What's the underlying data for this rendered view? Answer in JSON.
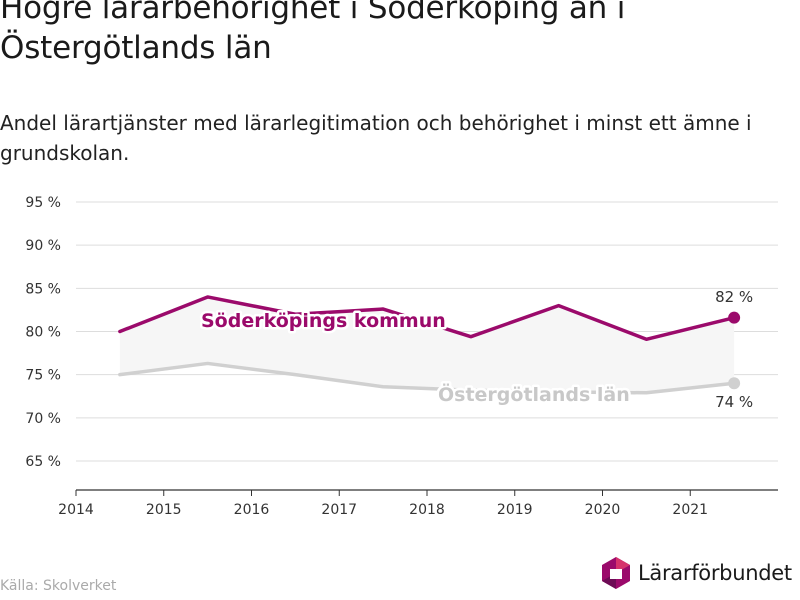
{
  "title": "Högre lärarbehörighet i Söderköping än i Östergötlands län",
  "subtitle": "Andel lärartjänster med lärarlegitimation och behörighet i minst ett ämne i grundskolan.",
  "source": "Källa: Skolverket",
  "logo": {
    "text": "Lärarförbundet",
    "icon": "hexagon-logo-icon"
  },
  "colors": {
    "soderkoping": "#9b0a6b",
    "ostergotland": "#d0d0d0",
    "band": "#f6f6f6",
    "grid": "#dddddd",
    "axis": "#333333"
  },
  "chart_data": {
    "type": "line",
    "x_ticks": [
      "2014",
      "2015",
      "2016",
      "2017",
      "2018",
      "2019",
      "2020",
      "2021"
    ],
    "y_ticks": [
      "95 %",
      "90 %",
      "85 %",
      "80 %",
      "75 %",
      "70 %",
      "65 %"
    ],
    "ylim": [
      62,
      97
    ],
    "xlim": [
      2014,
      2022
    ],
    "grid": true,
    "series": [
      {
        "name": "Söderköpings kommun",
        "x": [
          2014.5,
          2015.5,
          2016.5,
          2017.5,
          2018.5,
          2019.5,
          2020.5,
          2021.5
        ],
        "values": [
          80,
          84,
          82,
          82.6,
          79.4,
          83,
          79.1,
          81.6
        ],
        "end_label": "82 %"
      },
      {
        "name": "Östergötlands län",
        "x": [
          2014.5,
          2015.5,
          2016.5,
          2017.5,
          2018.5,
          2019.5,
          2020.5,
          2021.5
        ],
        "values": [
          75,
          76.3,
          75.0,
          73.6,
          73.2,
          73.0,
          72.9,
          74.0
        ],
        "end_label": "74 %"
      }
    ]
  }
}
